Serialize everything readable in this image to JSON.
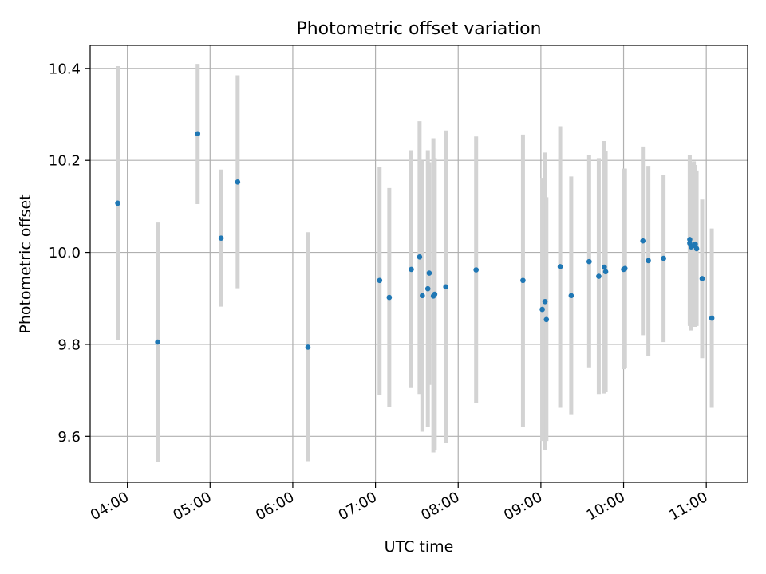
{
  "chart_data": {
    "type": "scatter",
    "title": "Photometric offset variation",
    "xlabel": "UTC time",
    "ylabel": "Photometric offset",
    "x_unit": "UTC time (HH:MM)",
    "xlim": [
      "03:33",
      "11:30"
    ],
    "ylim": [
      9.5,
      10.45
    ],
    "x_ticks": [
      "04:00",
      "05:00",
      "06:00",
      "07:00",
      "08:00",
      "09:00",
      "10:00",
      "11:00"
    ],
    "y_ticks": [
      9.6,
      9.8,
      10.0,
      10.2,
      10.4
    ],
    "y_tick_labels": [
      "9.6",
      "9.8",
      "10.0",
      "10.2",
      "10.4"
    ],
    "grid": true,
    "point_color": "#1f77b4",
    "errorbar_color": "#d3d3d3",
    "points": [
      {
        "x": "03:53",
        "y": 10.107,
        "lo": 9.81,
        "hi": 10.405
      },
      {
        "x": "04:22",
        "y": 9.805,
        "lo": 9.545,
        "hi": 10.065
      },
      {
        "x": "04:51",
        "y": 10.258,
        "lo": 10.105,
        "hi": 10.41
      },
      {
        "x": "05:08",
        "y": 10.031,
        "lo": 9.882,
        "hi": 10.18
      },
      {
        "x": "05:20",
        "y": 10.153,
        "lo": 9.922,
        "hi": 10.385
      },
      {
        "x": "06:11",
        "y": 9.794,
        "lo": 9.546,
        "hi": 10.044
      },
      {
        "x": "07:03",
        "y": 9.939,
        "lo": 9.69,
        "hi": 10.185
      },
      {
        "x": "07:10",
        "y": 9.902,
        "lo": 9.663,
        "hi": 10.14
      },
      {
        "x": "07:26",
        "y": 9.963,
        "lo": 9.705,
        "hi": 10.222
      },
      {
        "x": "07:32",
        "y": 9.99,
        "lo": 9.692,
        "hi": 10.285
      },
      {
        "x": "07:34",
        "y": 9.906,
        "lo": 9.61,
        "hi": 10.2
      },
      {
        "x": "07:38",
        "y": 9.921,
        "lo": 9.62,
        "hi": 10.222
      },
      {
        "x": "07:39",
        "y": 9.955,
        "lo": 9.712,
        "hi": 10.196
      },
      {
        "x": "07:42",
        "y": 9.905,
        "lo": 9.565,
        "hi": 10.248
      },
      {
        "x": "07:43",
        "y": 9.909,
        "lo": 9.57,
        "hi": 10.205
      },
      {
        "x": "07:51",
        "y": 9.925,
        "lo": 9.585,
        "hi": 10.265
      },
      {
        "x": "08:13",
        "y": 9.962,
        "lo": 9.672,
        "hi": 10.252
      },
      {
        "x": "08:47",
        "y": 9.939,
        "lo": 9.62,
        "hi": 10.256
      },
      {
        "x": "09:01",
        "y": 9.876,
        "lo": 9.59,
        "hi": 10.162
      },
      {
        "x": "09:03",
        "y": 9.893,
        "lo": 9.57,
        "hi": 10.217
      },
      {
        "x": "09:04",
        "y": 9.854,
        "lo": 9.59,
        "hi": 10.12
      },
      {
        "x": "09:14",
        "y": 9.969,
        "lo": 9.662,
        "hi": 10.274
      },
      {
        "x": "09:22",
        "y": 9.906,
        "lo": 9.648,
        "hi": 10.165
      },
      {
        "x": "09:35",
        "y": 9.98,
        "lo": 9.75,
        "hi": 10.212
      },
      {
        "x": "09:42",
        "y": 9.948,
        "lo": 9.692,
        "hi": 10.205
      },
      {
        "x": "09:46",
        "y": 9.968,
        "lo": 9.693,
        "hi": 10.242
      },
      {
        "x": "09:47",
        "y": 9.958,
        "lo": 9.696,
        "hi": 10.22
      },
      {
        "x": "10:00",
        "y": 9.963,
        "lo": 9.746,
        "hi": 10.182
      },
      {
        "x": "10:01",
        "y": 9.965,
        "lo": 9.748,
        "hi": 10.182
      },
      {
        "x": "10:14",
        "y": 10.025,
        "lo": 9.82,
        "hi": 10.23
      },
      {
        "x": "10:18",
        "y": 9.982,
        "lo": 9.775,
        "hi": 10.188
      },
      {
        "x": "10:29",
        "y": 9.987,
        "lo": 9.805,
        "hi": 10.168
      },
      {
        "x": "10:48",
        "y": 10.028,
        "lo": 9.843,
        "hi": 10.212
      },
      {
        "x": "10:48",
        "y": 10.02,
        "lo": 9.84,
        "hi": 10.2
      },
      {
        "x": "10:49",
        "y": 10.012,
        "lo": 9.83,
        "hi": 10.195
      },
      {
        "x": "10:51",
        "y": 10.015,
        "lo": 9.838,
        "hi": 10.198
      },
      {
        "x": "10:52",
        "y": 10.018,
        "lo": 9.838,
        "hi": 10.19
      },
      {
        "x": "10:53",
        "y": 10.008,
        "lo": 9.84,
        "hi": 10.178
      },
      {
        "x": "10:57",
        "y": 9.943,
        "lo": 9.77,
        "hi": 10.115
      },
      {
        "x": "11:04",
        "y": 9.857,
        "lo": 9.662,
        "hi": 10.052
      }
    ]
  }
}
